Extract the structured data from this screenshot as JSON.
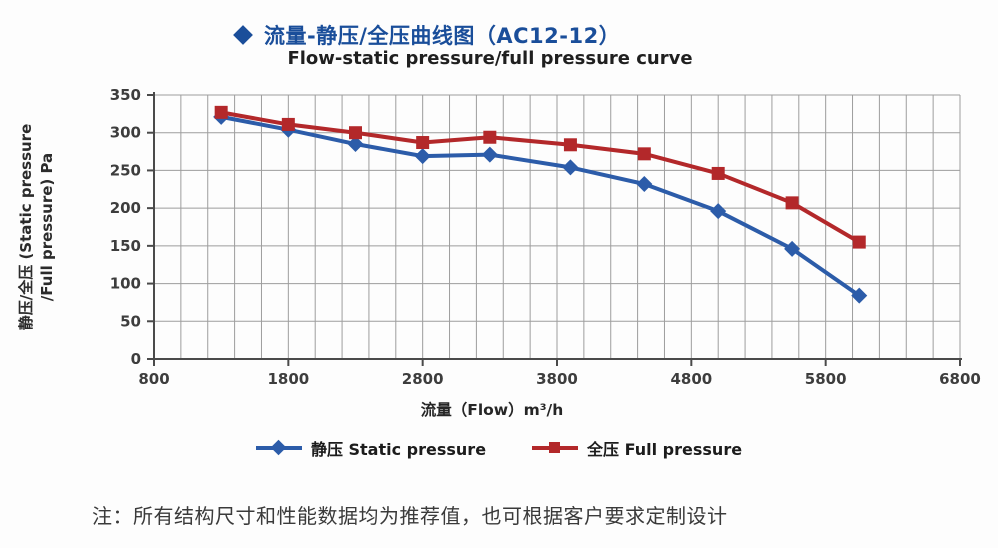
{
  "page": {
    "background": "#fdfdfd"
  },
  "header": {
    "bullet_icon": "diamond-icon",
    "title": "流量-静压/全压曲线图（AC12-12）",
    "subtitle": "Flow-static pressure/full pressure curve",
    "title_color": "#1a4e9a"
  },
  "chart_data": {
    "type": "line",
    "title": "流量-静压/全压曲线图（AC12-12）",
    "subtitle": "Flow-static pressure/full pressure curve",
    "xlabel": "流量（Flow）m³/h",
    "ylabel": "静压/全压 (Static pressure /Full pressure) Pa",
    "ylabel_lines": [
      "静压/全压 (Static pressure",
      "/Full pressure) Pa"
    ],
    "xlim": [
      800,
      6800
    ],
    "ylim": [
      0,
      350
    ],
    "xticks": [
      800,
      1800,
      2800,
      3800,
      4800,
      5800,
      6800
    ],
    "yticks": [
      0,
      50,
      100,
      150,
      200,
      250,
      300,
      350
    ],
    "x_minor_grid_step": 200,
    "y_grid_step": 50,
    "grid": true,
    "grid_color": "#9d9d9d",
    "axis_color": "#4a4a4a",
    "legend_position": "bottom",
    "x": [
      1300,
      1800,
      2300,
      2800,
      3300,
      3900,
      4450,
      5000,
      5550,
      6050
    ],
    "series": [
      {
        "name": "静压 Static pressure",
        "color": "#2c5ca9",
        "marker": "diamond",
        "values": [
          321,
          304,
          285,
          269,
          271,
          254,
          232,
          196,
          146,
          84
        ]
      },
      {
        "name": "全压 Full pressure",
        "color": "#b3282a",
        "marker": "square",
        "values": [
          327,
          311,
          300,
          287,
          294,
          284,
          272,
          246,
          207,
          155
        ]
      }
    ]
  },
  "note": "注：所有结构尺寸和性能数据均为推荐值，也可根据客户要求定制设计"
}
